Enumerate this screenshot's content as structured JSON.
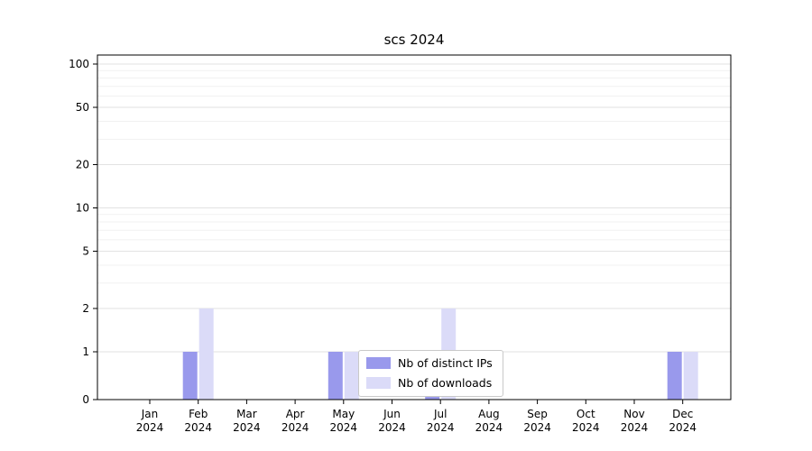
{
  "title": "scs 2024",
  "chart_data": {
    "type": "bar",
    "categories": [
      "Jan",
      "Feb",
      "Mar",
      "Apr",
      "May",
      "Jun",
      "Jul",
      "Aug",
      "Sep",
      "Oct",
      "Nov",
      "Dec"
    ],
    "year": "2024",
    "series": [
      {
        "name": "Nb of distinct IPs",
        "color": "#9999ec",
        "values": [
          0,
          1,
          0,
          0,
          1,
          0,
          1,
          0,
          0,
          0,
          0,
          1
        ]
      },
      {
        "name": "Nb of downloads",
        "color": "#dbdbf8",
        "values": [
          0,
          2,
          0,
          0,
          1,
          0,
          2,
          0,
          0,
          0,
          0,
          1
        ]
      }
    ],
    "yscale": "symlog",
    "yticks": [
      0,
      1,
      2,
      5,
      10,
      20,
      50,
      100
    ],
    "ylim": [
      0,
      115
    ],
    "grid": true,
    "legend_position": "lower center"
  }
}
